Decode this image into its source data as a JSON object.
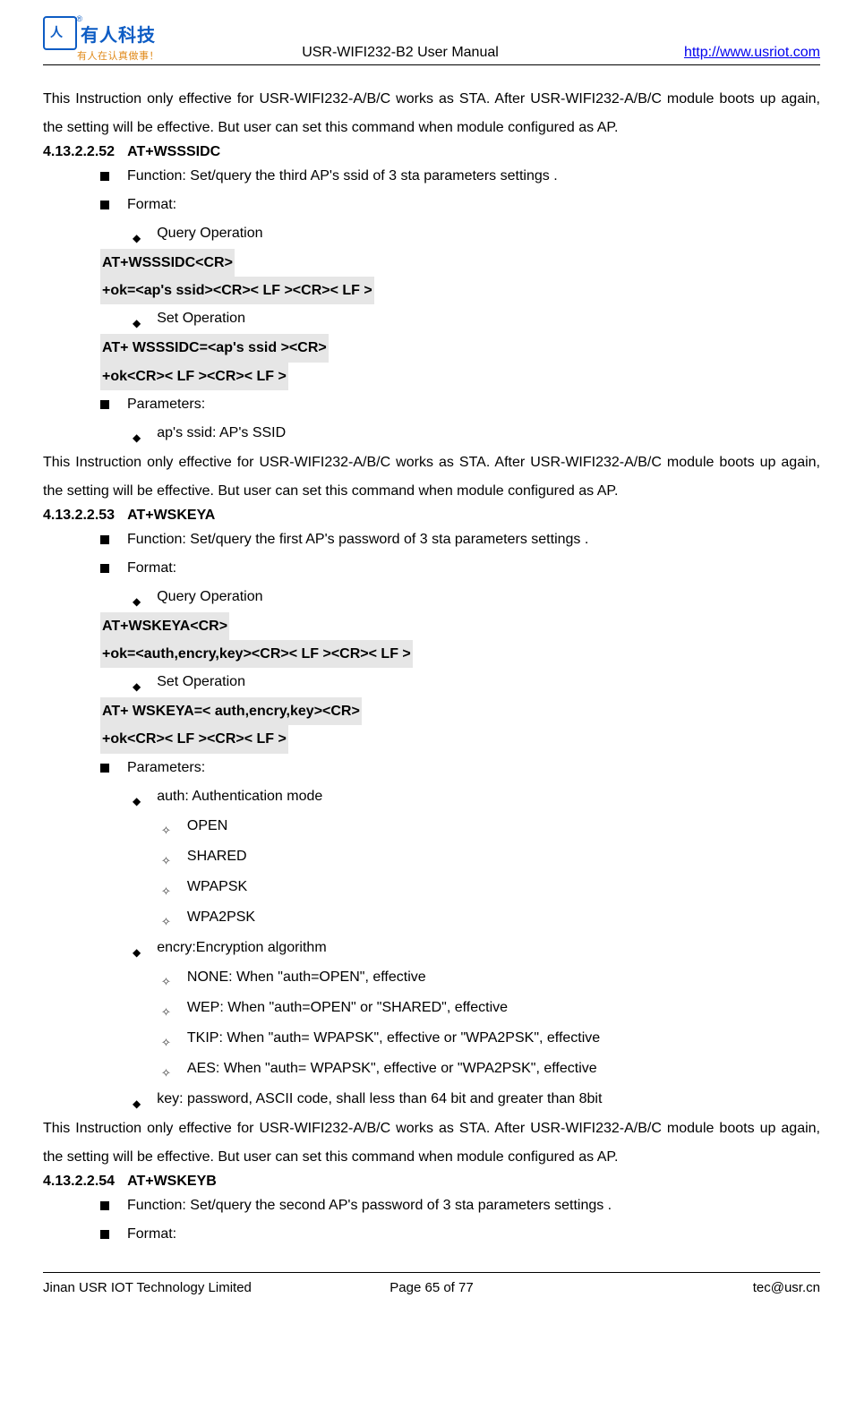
{
  "header": {
    "logo_cn_big": "有人科技",
    "logo_cn_small": "有人在认真做事！",
    "title": "USR-WIFI232-B2 User Manual",
    "link_text": "http://www.usriot.com",
    "link_href": "http://www.usriot.com"
  },
  "p_intro1": "This Instruction only effective for USR-WIFI232-A/B/C works as STA. After USR-WIFI232-A/B/C module boots up again, the setting will be effective. But user can set this command when module configured as AP.",
  "sec52": {
    "num": "4.13.2.2.52",
    "title": "AT+WSSSIDC",
    "function_label": "Function: ",
    "function_text": "Set/query the third AP's ssid of 3 sta parameters settings .",
    "format_label": "Format:",
    "query_op": "Query Operation",
    "code_q1": "AT+WSSSIDC<CR>",
    "code_q2": "+ok=<ap's ssid><CR>< LF ><CR>< LF >",
    "set_op": "Set Operation",
    "code_s1": "AT+ WSSSIDC=<ap's ssid ><CR>",
    "code_s2": "+ok<CR>< LF ><CR>< LF >",
    "params_label": "Parameters:",
    "param1": "ap's ssid: AP's SSID"
  },
  "p_intro2": "This Instruction only effective for USR-WIFI232-A/B/C works as STA. After USR-WIFI232-A/B/C module boots up again, the setting will be effective. But user can set this command when module configured as AP.",
  "sec53": {
    "num": "4.13.2.2.53",
    "title": "AT+WSKEYA",
    "function_label": "Function: ",
    "function_text": "Set/query the first AP's password of 3 sta parameters settings .",
    "format_label": "Format:",
    "query_op": "Query Operation",
    "code_q1": "AT+WSKEYA<CR>",
    "code_q2": "+ok=<auth,encry,key><CR>< LF ><CR>< LF >",
    "set_op": "Set Operation",
    "code_s1": "AT+ WSKEYA=< auth,encry,key><CR>",
    "code_s2": "+ok<CR>< LF ><CR>< LF >",
    "params_label": "Parameters:",
    "p_auth": "auth: Authentication mode",
    "auth_opts": [
      "OPEN",
      "SHARED",
      "WPAPSK",
      "WPA2PSK"
    ],
    "p_encry": "encry:Encryption algorithm",
    "encry_opts": [
      "NONE: When \"auth=OPEN\", effective",
      "WEP:   When \"auth=OPEN\" or \"SHARED\", effective",
      "TKIP:   When \"auth= WPAPSK\", effective or \"WPA2PSK\", effective",
      "AES:    When \"auth= WPAPSK\", effective or \"WPA2PSK\", effective"
    ],
    "p_key": "key: password, ASCII code, shall less than 64 bit and greater than 8bit"
  },
  "p_intro3": "This Instruction only effective for USR-WIFI232-A/B/C works as STA. After USR-WIFI232-A/B/C module boots up again, the setting will be effective. But user can set this command when module configured as AP.",
  "sec54": {
    "num": "4.13.2.2.54",
    "title": "AT+WSKEYB",
    "function_label": "Function: ",
    "function_text": "Set/query the second AP's password of 3 sta parameters settings .",
    "format_label": "Format:"
  },
  "footer": {
    "left": "Jinan USR IOT Technology Limited",
    "center": "Page 65 of 77",
    "right": "tec@usr.cn"
  },
  "glyphs": {
    "diamond": "◆",
    "open_diamond": "✧"
  },
  "colors": {
    "link": "#0000ee",
    "code_bg": "#e6e6e6",
    "logo_blue": "#0d5cc4",
    "logo_orange": "#e08a1a"
  }
}
